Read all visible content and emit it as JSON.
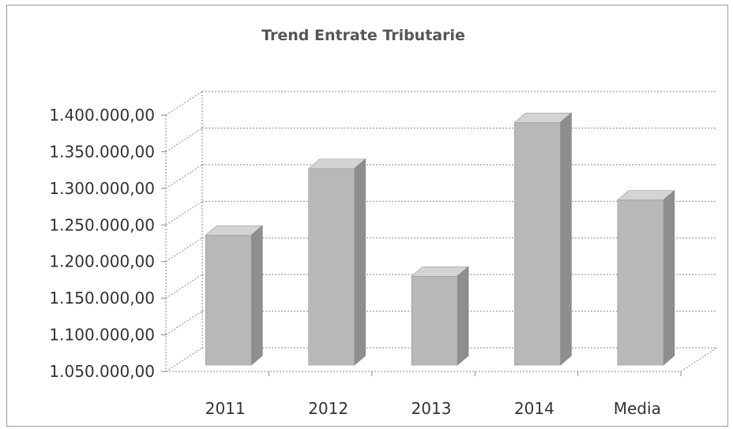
{
  "chart_data": {
    "type": "bar",
    "title": "Trend Entrate Tributarie",
    "categories": [
      "2011",
      "2012",
      "2013",
      "2014",
      "Media"
    ],
    "values": [
      1236000,
      1327000,
      1180000,
      1390000,
      1284000
    ],
    "ylim": [
      1050000,
      1400000
    ],
    "yticks": [
      "1.050.000,00",
      "1.100.000,00",
      "1.150.000,00",
      "1.200.000,00",
      "1.250.000,00",
      "1.300.000,00",
      "1.350.000,00",
      "1.400.000,00"
    ],
    "grid": true,
    "legend": "none",
    "colors": {
      "bar_front": "#b8b8b8",
      "bar_side": "#8e8e8e",
      "bar_top": "#d4d4d4",
      "grid": "#8a8a8a",
      "text": "#333333"
    }
  }
}
